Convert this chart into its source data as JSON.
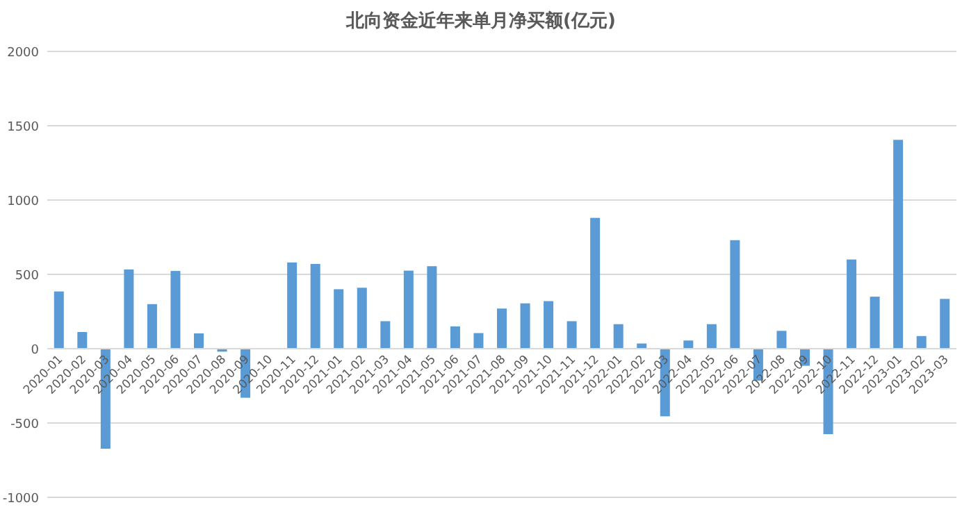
{
  "chart_data": {
    "type": "bar",
    "title": "北向资金近年来单月净买额(亿元)",
    "categories": [
      "2020-01",
      "2020-02",
      "2020-03",
      "2020-04",
      "2020-05",
      "2020-06",
      "2020-07",
      "2020-08",
      "2020-09",
      "2020-10",
      "2020-11",
      "2020-12",
      "2021-01",
      "2021-02",
      "2021-03",
      "2021-04",
      "2021-05",
      "2021-06",
      "2021-07",
      "2021-08",
      "2021-09",
      "2021-10",
      "2021-11",
      "2021-12",
      "2022-01",
      "2022-02",
      "2022-03",
      "2022-04",
      "2022-05",
      "2022-06",
      "2022-07",
      "2022-08",
      "2022-09",
      "2022-10",
      "2022-11",
      "2022-12",
      "2023-01",
      "2023-02",
      "2023-03"
    ],
    "values": [
      385,
      112,
      -673,
      533,
      300,
      523,
      103,
      -20,
      -330,
      0,
      580,
      570,
      400,
      410,
      185,
      525,
      555,
      150,
      105,
      270,
      305,
      320,
      185,
      880,
      165,
      35,
      -455,
      55,
      165,
      730,
      -215,
      120,
      -115,
      -575,
      600,
      350,
      1405,
      85,
      335
    ],
    "color": "#5b9bd5",
    "ylim": [
      -1000,
      2000
    ],
    "yticks": [
      -1000,
      -500,
      0,
      500,
      1000,
      1500,
      2000
    ],
    "grid": "y"
  }
}
